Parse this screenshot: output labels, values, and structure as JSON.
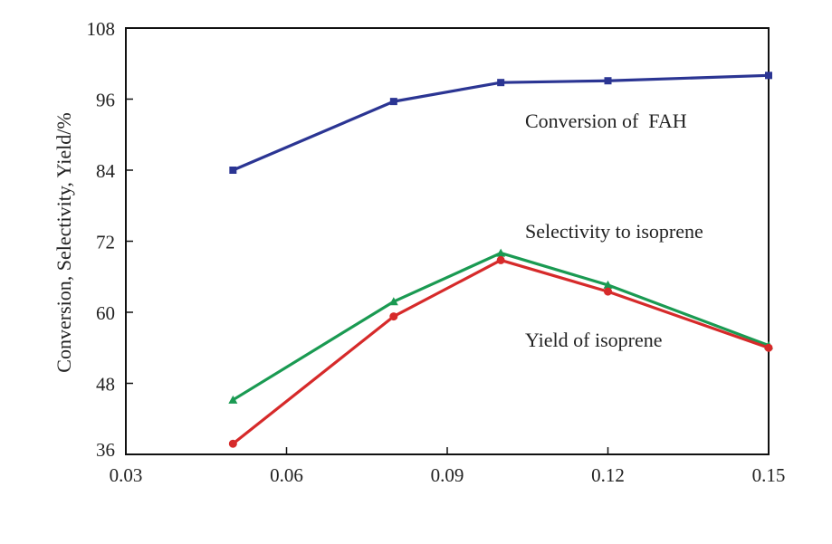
{
  "chart_data": {
    "type": "line",
    "title": "",
    "xlabel": "",
    "ylabel": "Conversion, Selectivity, Yield/%",
    "xlim": [
      0.03,
      0.15
    ],
    "ylim": [
      36,
      108
    ],
    "x_ticks": [
      "0.03",
      "0.06",
      "0.09",
      "0.12",
      "0.15"
    ],
    "y_ticks": [
      "36",
      "48",
      "60",
      "72",
      "84",
      "96",
      "108"
    ],
    "grid": false,
    "legend": "none",
    "x": [
      0.05,
      0.08,
      0.1,
      0.12,
      0.15
    ],
    "series": [
      {
        "name": "Conversion of  FAH",
        "values": [
          84.0,
          95.6,
          98.8,
          99.1,
          100.0
        ],
        "color": "#2b3593",
        "marker": "square"
      },
      {
        "name": "Selectivity to isoprene",
        "values": [
          45.2,
          61.8,
          70.0,
          64.6,
          54.4
        ],
        "color": "#1a9a52",
        "marker": "triangle"
      },
      {
        "name": "Yield of isoprene",
        "values": [
          37.8,
          59.3,
          68.8,
          63.5,
          54.0
        ],
        "color": "#d62a2a",
        "marker": "circle"
      }
    ]
  }
}
